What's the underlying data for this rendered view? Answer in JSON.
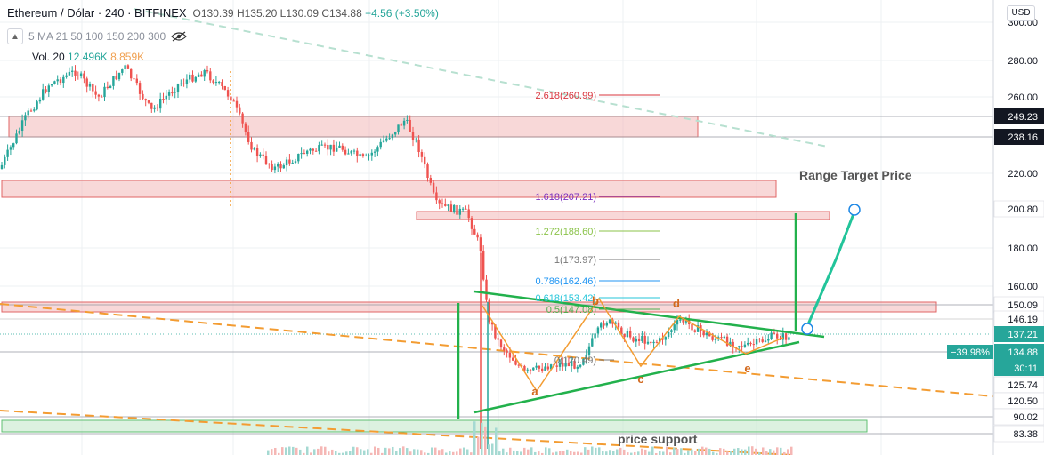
{
  "header": {
    "symbol": "Ethereum / Dólar · 240 · BITFINEX",
    "open": "O130.39",
    "high": "H135.20",
    "low": "L130.09",
    "close": "C134.88",
    "change": "+4.56 (+3.50%)",
    "indicators": "5 MA 21 50 100 150 200 300",
    "volume_label": "Vol. 20",
    "volume_value_1": "12.496K",
    "volume_value_2": "8.859K",
    "currency": "USD"
  },
  "annotations": {
    "range_target": "Range Target Price",
    "price_support": "price support",
    "percent_tag": "−39.98%"
  },
  "colors": {
    "up": "#26a69a",
    "down": "#ef5350",
    "zone_red": "#f2b8b8",
    "zone_green": "#bfe6c6",
    "trend_green": "#22b14c",
    "ma_orange": "#f39c32",
    "wave_brown": "#d2691e",
    "target_arrow": "#22c49a",
    "price_tag": "#26a69a",
    "dark_tag": "#131722"
  },
  "chart_data": {
    "type": "candlestick",
    "ylim": [
      80,
      304
    ],
    "y_ticks": [
      300,
      280,
      260,
      220,
      180,
      160
    ],
    "y_tick_labels": [
      "300.00",
      "280.00",
      "260.00",
      "220.00",
      "180.00",
      "160.00"
    ],
    "price_tags": [
      {
        "label": "249.23",
        "value": 249.23,
        "style": "dark"
      },
      {
        "label": "238.16",
        "value": 238.16,
        "style": "dark"
      },
      {
        "label": "200.80",
        "value": 200.8,
        "style": "light"
      },
      {
        "label": "150.09",
        "value": 150.09,
        "style": "light"
      },
      {
        "label": "146.19",
        "value": 146.19,
        "style": "light"
      },
      {
        "label": "137.21",
        "value": 137.21,
        "style": "teal"
      },
      {
        "label": "134.88",
        "value": 134.88,
        "style": "teal"
      },
      {
        "label": "30:11",
        "value": 131.4,
        "style": "teal"
      },
      {
        "label": "125.74",
        "value": 125.74,
        "style": "light"
      },
      {
        "label": "120.50",
        "value": 120.5,
        "style": "light"
      },
      {
        "label": "90.02",
        "value": 90.02,
        "style": "light"
      },
      {
        "label": "83.38",
        "value": 83.38,
        "style": "light"
      }
    ],
    "fib_levels": [
      {
        "label": "2.618(260.99)",
        "value": 260.99,
        "color": "#d9363e"
      },
      {
        "label": "1.618(207.21)",
        "value": 207.21,
        "color": "#7b2fbe"
      },
      {
        "label": "1.272(188.60)",
        "value": 188.6,
        "color": "#8bc34a"
      },
      {
        "label": "1(173.97)",
        "value": 173.97,
        "color": "#777777"
      },
      {
        "label": "0.786(162.46)",
        "value": 162.46,
        "color": "#2196f3"
      },
      {
        "label": "0.618(153.42)",
        "value": 153.42,
        "color": "#26c6da"
      },
      {
        "label": "0.5(147.08)",
        "value": 147.08,
        "color": "#4caf50"
      },
      {
        "label": "0(120.49)",
        "value": 120.49,
        "color": "#777777"
      }
    ],
    "wave_labels": [
      "a",
      "b",
      "c",
      "d",
      "e"
    ]
  }
}
